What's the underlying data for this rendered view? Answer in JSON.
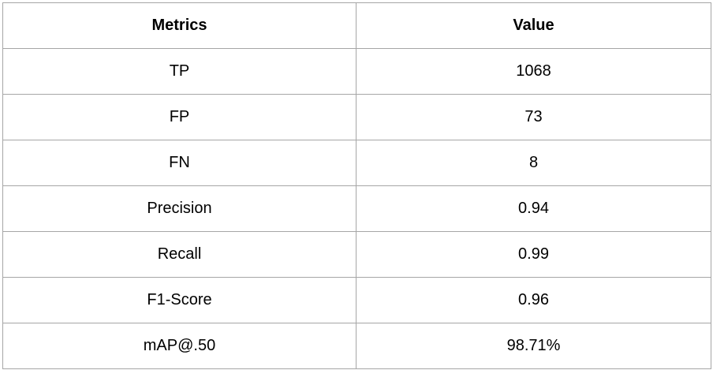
{
  "table": {
    "headers": [
      "Metrics",
      "Value"
    ],
    "rows": [
      [
        "TP",
        "1068"
      ],
      [
        "FP",
        "73"
      ],
      [
        "FN",
        "8"
      ],
      [
        "Precision",
        "0.94"
      ],
      [
        "Recall",
        "0.99"
      ],
      [
        "F1-Score",
        "0.96"
      ],
      [
        "mAP@.50",
        "98.71%"
      ]
    ]
  },
  "colors": {
    "border": "#a6a6a6",
    "text": "#000000",
    "background": "#ffffff"
  }
}
